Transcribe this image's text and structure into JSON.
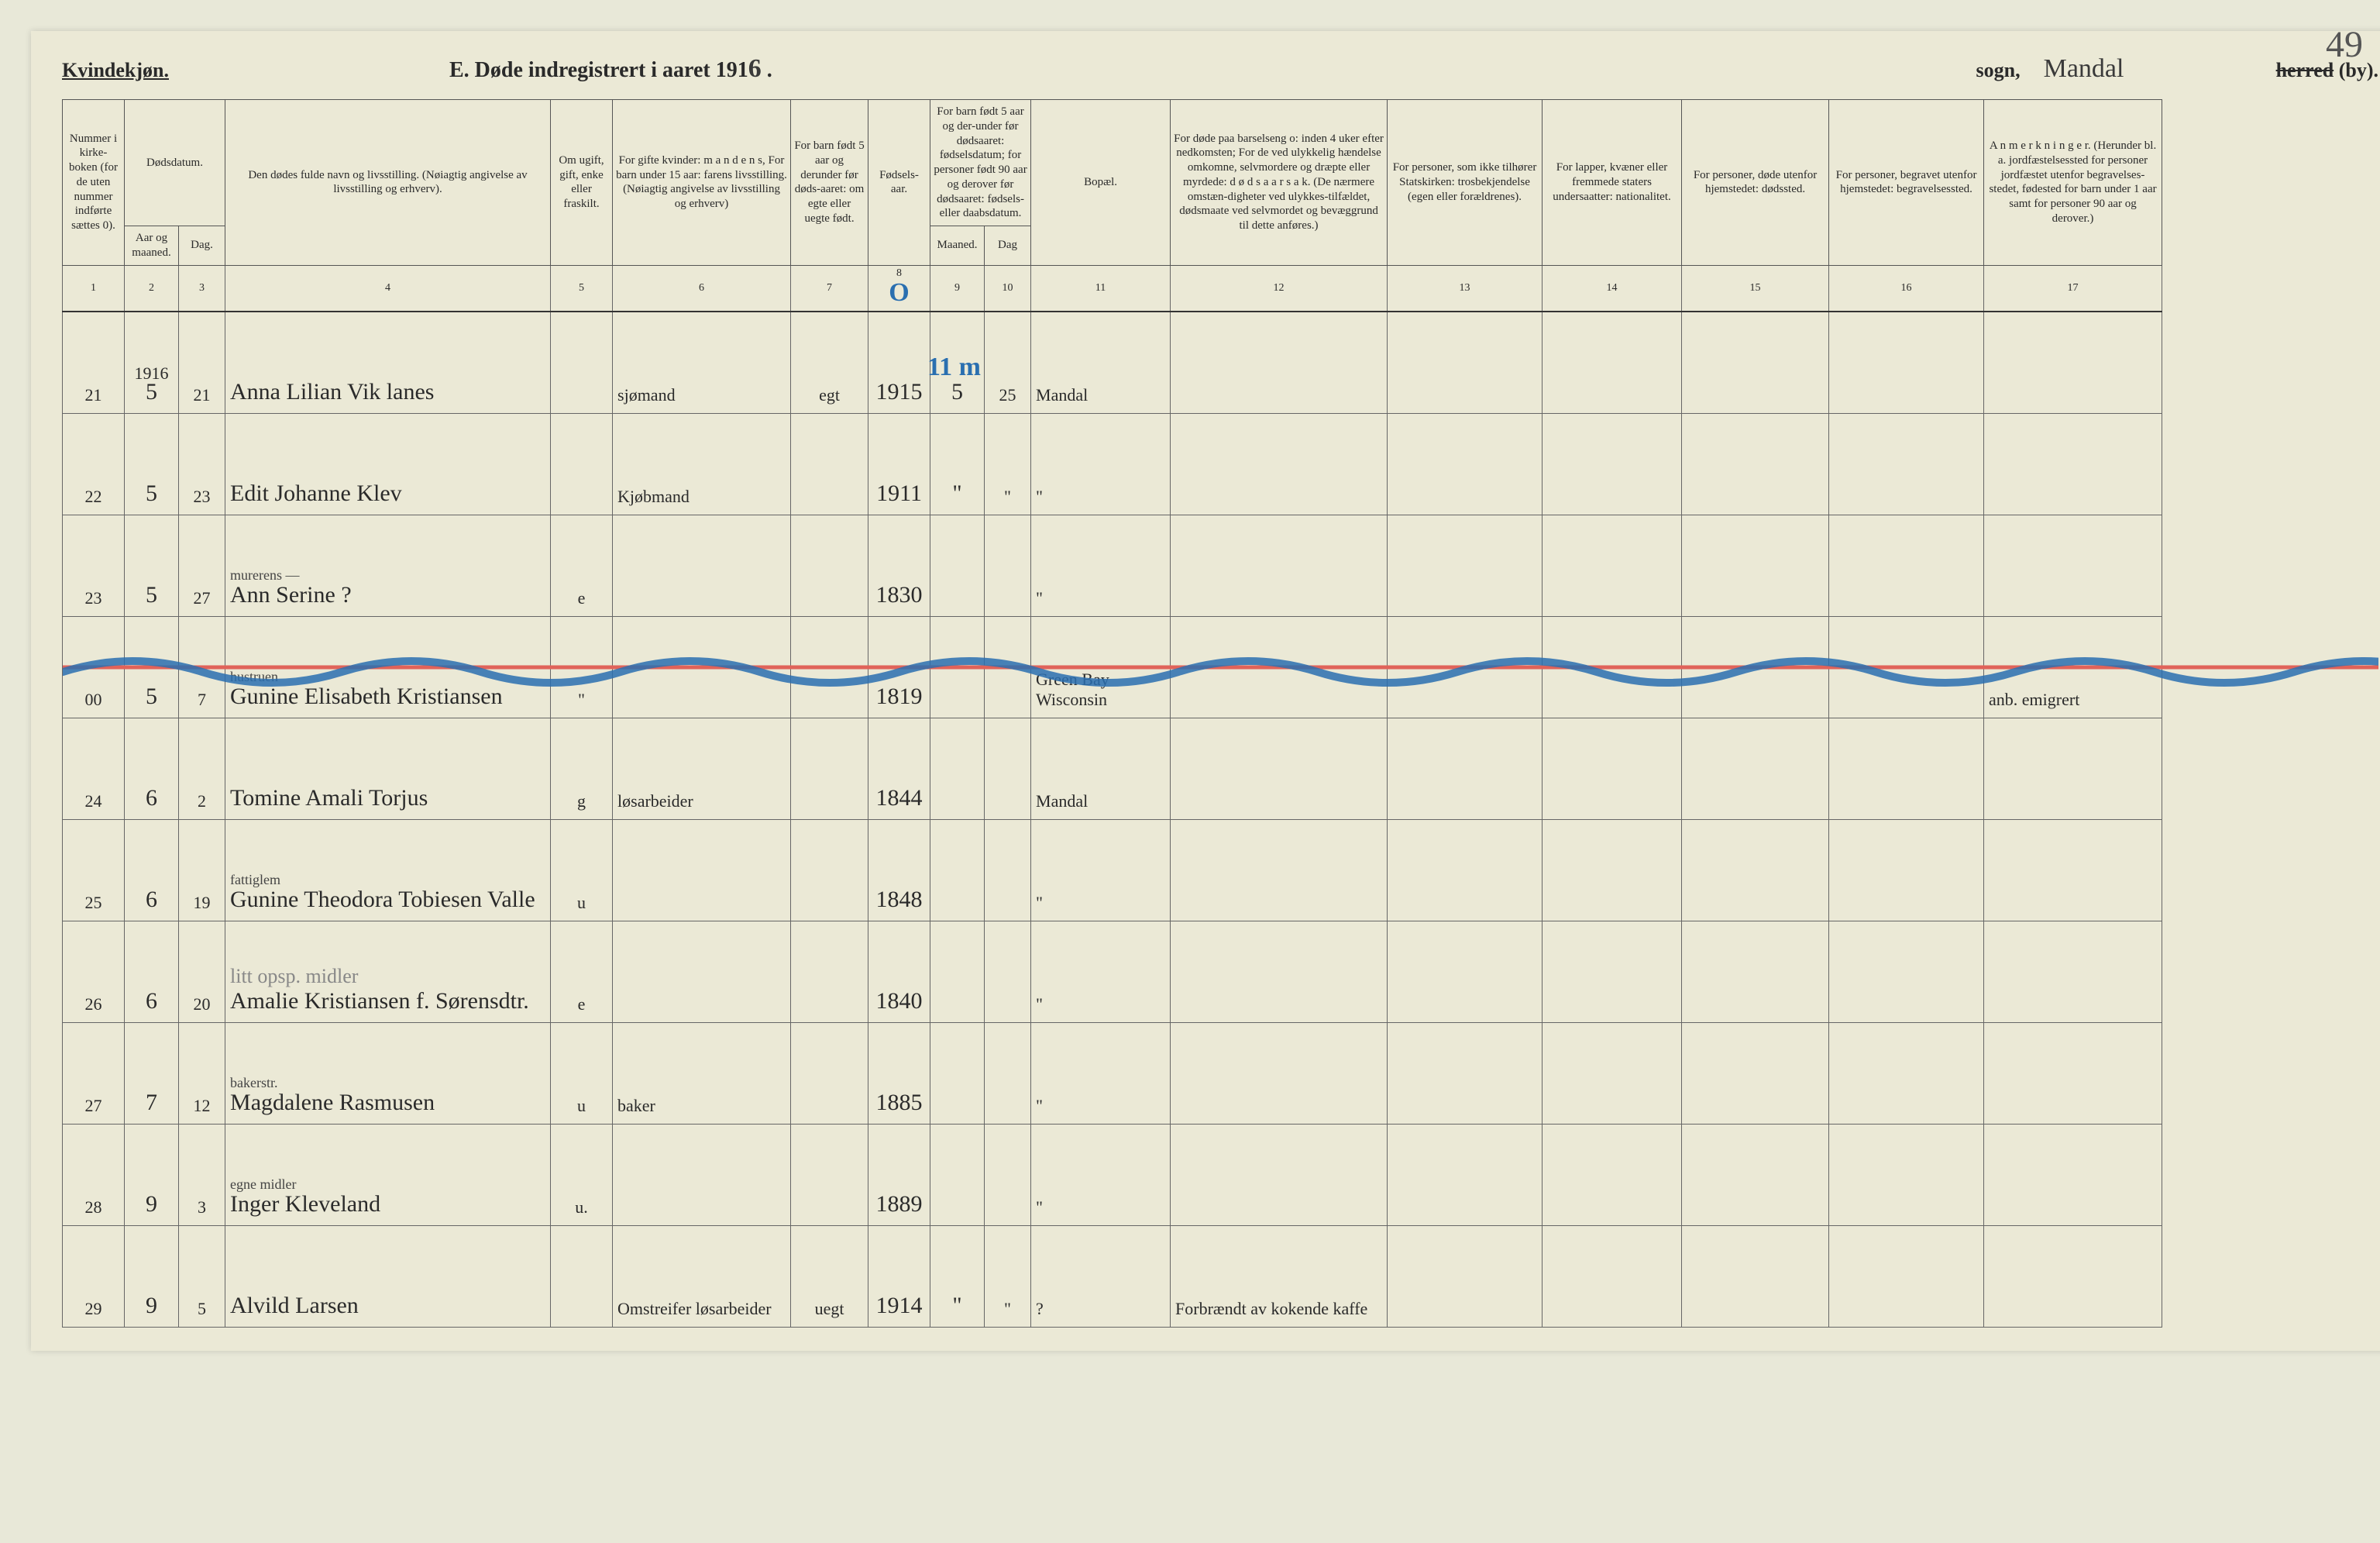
{
  "gender_heading": "Kvindekjøn.",
  "title_prefix": "E.   Døde indregistrert i aaret 191",
  "title_year_digit": "6",
  "sogn_label": "sogn,",
  "sogn_name_handwritten": "Mandal",
  "herred_struck": "herred",
  "herred_suffix": "(by).",
  "page_number": "49",
  "headers": {
    "c1": "Nummer i kirke-boken (for de uten nummer indførte sættes 0).",
    "c2_top": "Dødsdatum.",
    "c2a": "Aar og maaned.",
    "c2b": "Dag.",
    "c4": "Den dødes fulde navn og livsstilling.\n(Nøiagtig angivelse av livsstilling og erhverv).",
    "c5": "Om ugift, gift, enke eller fraskilt.",
    "c6": "For gifte kvinder:\nm a n d e n s,\nFor barn under 15 aar:\nfarens livsstilling.\n(Nøiagtig angivelse av livsstilling og erhverv)",
    "c7": "For barn født 5 aar og derunder før døds-aaret: om egte eller uegte født.",
    "c8": "Fødsels-aar.",
    "c9_top": "For barn født 5 aar og der-under før dødsaaret: fødselsdatum; for personer født 90 aar og derover før dødsaaret: fødsels- eller daabsdatum.",
    "c9a": "Maaned.",
    "c9b": "Dag",
    "c11": "Bopæl.",
    "c12": "For døde paa barselseng o: inden 4 uker efter nedkomsten; For de ved ulykkelig hændelse omkomne, selvmordere og dræpte eller myrdede: d ø d s a a r s a k. (De nærmere omstæn-digheter ved ulykkes-tilfældet, dødsmaate ved selvmordet og bevæggrund til dette anføres.)",
    "c13": "For personer, som ikke tilhører Statskirken: trosbekjendelse (egen eller forældrenes).",
    "c14": "For lapper, kvæner eller fremmede staters undersaatter: nationalitet.",
    "c15": "For personer, døde utenfor hjemstedet: dødssted.",
    "c16": "For personer, begravet utenfor hjemstedet: begravelsessted.",
    "c17": "A n m e r k n i n g e r. (Herunder bl. a. jordfæstelsessted for personer jordfæstet utenfor begravelses-stedet, fødested for barn under 1 aar samt for personer 90 aar og derover.)"
  },
  "colnums": [
    "1",
    "2",
    "3",
    "4",
    "5",
    "6",
    "7",
    "8",
    "9",
    "10",
    "11",
    "12",
    "13",
    "14",
    "15",
    "16",
    "17"
  ],
  "blue_header_annot": {
    "c8": "O",
    "c9": "11 m"
  },
  "year_note": "1916",
  "rows": [
    {
      "num": "21",
      "mon": "5",
      "day": "21",
      "name": "Anna Lilian Vik lanes",
      "status": "",
      "occ": "sjømand",
      "egte": "egt",
      "byear": "1915",
      "bmon": "5",
      "bday": "25",
      "bopael": "Mandal",
      "c12": "",
      "c13": "",
      "c14": "",
      "c15": "",
      "c16": "",
      "c17": ""
    },
    {
      "num": "22",
      "mon": "5",
      "day": "23",
      "name": "Edit Johanne Klev",
      "status": "",
      "occ": "Kjøbmand",
      "egte": "",
      "byear": "1911",
      "bmon": "\"",
      "bday": "\"",
      "bopael": "\"",
      "c12": "",
      "c13": "",
      "c14": "",
      "c15": "",
      "c16": "",
      "c17": ""
    },
    {
      "num": "23",
      "mon": "5",
      "day": "27",
      "name_note": "murerens —",
      "name": "Ann Serine ?",
      "status": "e",
      "occ": "",
      "egte": "",
      "byear": "1830",
      "bmon": "",
      "bday": "",
      "bopael": "\"",
      "c12": "",
      "c13": "",
      "c14": "",
      "c15": "",
      "c16": "",
      "c17": ""
    },
    {
      "struck": true,
      "num": "00",
      "mon": "5",
      "day": "7",
      "name_note": "hustruen",
      "name": "Gunine Elisabeth Kristiansen",
      "status": "\"",
      "occ": "",
      "egte": "",
      "byear": "1819",
      "bmon": "",
      "bday": "",
      "bopael": "Green Bay Wisconsin",
      "c12": "",
      "c13": "",
      "c14": "",
      "c15": "",
      "c16": "",
      "c17": "anb. emigrert"
    },
    {
      "num": "24",
      "mon": "6",
      "day": "2",
      "name": "Tomine Amali Torjus",
      "status": "g",
      "occ": "løsarbeider",
      "egte": "",
      "byear": "1844",
      "bmon": "",
      "bday": "",
      "bopael": "Mandal",
      "c12": "",
      "c13": "",
      "c14": "",
      "c15": "",
      "c16": "",
      "c17": ""
    },
    {
      "num": "25",
      "mon": "6",
      "day": "19",
      "name_note": "fattiglem",
      "name": "Gunine Theodora Tobiesen Valle",
      "status": "u",
      "occ": "",
      "egte": "",
      "byear": "1848",
      "bmon": "",
      "bday": "",
      "bopael": "\"",
      "c12": "",
      "c13": "",
      "c14": "",
      "c15": "",
      "c16": "",
      "c17": ""
    },
    {
      "num": "26",
      "mon": "6",
      "day": "20",
      "name_pencil": "litt opsp. midler",
      "name": "Amalie Kristiansen f. Sørensdtr.",
      "status": "e",
      "occ": "",
      "egte": "",
      "byear": "1840",
      "bmon": "",
      "bday": "",
      "bopael": "\"",
      "c12": "",
      "c13": "",
      "c14": "",
      "c15": "",
      "c16": "",
      "c17": ""
    },
    {
      "num": "27",
      "mon": "7",
      "day": "12",
      "name_note": "bakerstr.",
      "name": "Magdalene Rasmusen",
      "status": "u",
      "occ": "baker",
      "egte": "",
      "byear": "1885",
      "bmon": "",
      "bday": "",
      "bopael": "\"",
      "c12": "",
      "c13": "",
      "c14": "",
      "c15": "",
      "c16": "",
      "c17": ""
    },
    {
      "num": "28",
      "mon": "9",
      "day": "3",
      "name_note": "egne midler",
      "name": "Inger Kleveland",
      "status": "u.",
      "occ": "",
      "egte": "",
      "byear": "1889",
      "bmon": "",
      "bday": "",
      "bopael": "\"",
      "c12": "",
      "c13": "",
      "c14": "",
      "c15": "",
      "c16": "",
      "c17": ""
    },
    {
      "num": "29",
      "mon": "9",
      "day": "5",
      "name": "Alvild Larsen",
      "status": "",
      "occ": "Omstreifer løsarbeider",
      "egte": "uegt",
      "byear": "1914",
      "bmon": "\"",
      "bday": "\"",
      "bopael": "?",
      "c12": "Forbrændt av kokende kaffe",
      "c13": "",
      "c14": "",
      "c15": "",
      "c16": "",
      "c17": ""
    }
  ],
  "colors": {
    "paper": "#ebe9d6",
    "ink": "#2a2a2a",
    "rule": "#555555",
    "blue_pencil": "#2a6fb0",
    "red_line": "#e0635a",
    "pencil": "#888888"
  }
}
